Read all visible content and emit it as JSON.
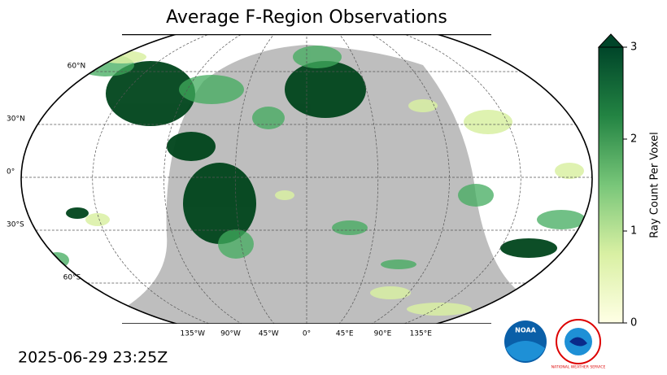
{
  "title": "Average F-Region Observations",
  "map": {
    "latitudes": [
      {
        "value": 60,
        "label": "60°N"
      },
      {
        "value": 30,
        "label": "30°N"
      },
      {
        "value": 0,
        "label": "0°"
      },
      {
        "value": -30,
        "label": "30°S"
      },
      {
        "value": -60,
        "label": "60°S"
      }
    ],
    "longitudes": [
      {
        "value": -135,
        "label": "135°W"
      },
      {
        "value": -90,
        "label": "90°W"
      },
      {
        "value": -45,
        "label": "45°W"
      },
      {
        "value": 0,
        "label": "0°"
      },
      {
        "value": 45,
        "label": "45°E"
      },
      {
        "value": 90,
        "label": "90°E"
      },
      {
        "value": 135,
        "label": "135°E"
      }
    ]
  },
  "colorbar": {
    "label": "Ray Count Per Voxel",
    "lim": [
      0,
      3
    ],
    "ticks": [
      0,
      1,
      2,
      3
    ],
    "colors": [
      "#ffffe5",
      "#d9f0a3",
      "#78c679",
      "#238443",
      "#004529"
    ]
  },
  "timestamp": "2025-06-29 23:25Z",
  "logos": {
    "noaa": "NOAA",
    "nws": "NATIONAL WEATHER SERVICE"
  }
}
